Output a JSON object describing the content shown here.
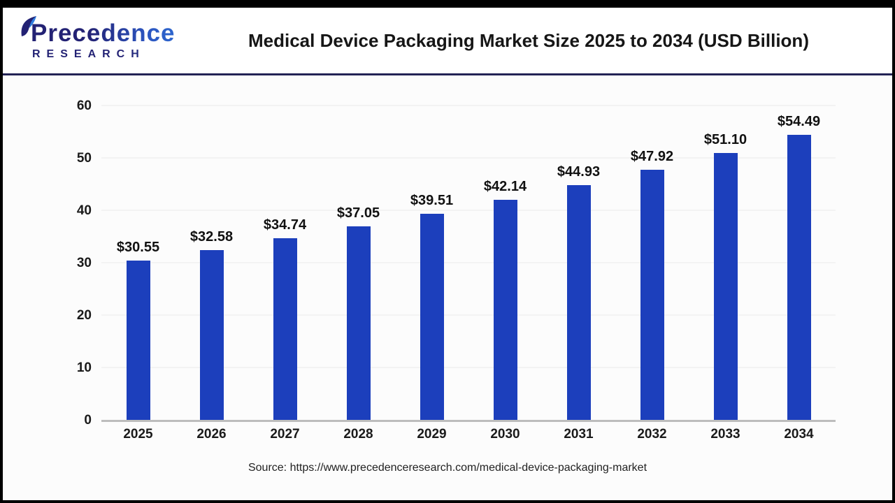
{
  "header": {
    "logo": {
      "line1": "Precedence",
      "line2": "RESEARCH"
    },
    "title": "Medical Device Packaging Market Size 2025 to 2034 (USD Billion)"
  },
  "chart_data": {
    "type": "bar",
    "title": "Medical Device Packaging Market Size 2025 to 2034 (USD Billion)",
    "categories": [
      "2025",
      "2026",
      "2027",
      "2028",
      "2029",
      "2030",
      "2031",
      "2032",
      "2033",
      "2034"
    ],
    "values": [
      30.55,
      32.58,
      34.74,
      37.05,
      39.51,
      42.14,
      44.93,
      47.92,
      51.1,
      54.49
    ],
    "value_labels": [
      "$30.55",
      "$32.58",
      "$34.74",
      "$37.05",
      "$39.51",
      "$42.14",
      "$44.93",
      "$47.92",
      "$51.10",
      "$54.49"
    ],
    "value_prefix": "$",
    "xlabel": "",
    "ylabel": "",
    "ylim": [
      0,
      60
    ],
    "yticks": [
      0,
      10,
      20,
      30,
      40,
      50,
      60
    ],
    "grid": "horizontal-faint",
    "legend": "none",
    "bar_color": "#1c3fbc",
    "units": "USD Billion"
  },
  "footer": {
    "source": "Source: https://www.precedenceresearch.com/medical-device-packaging-market"
  }
}
